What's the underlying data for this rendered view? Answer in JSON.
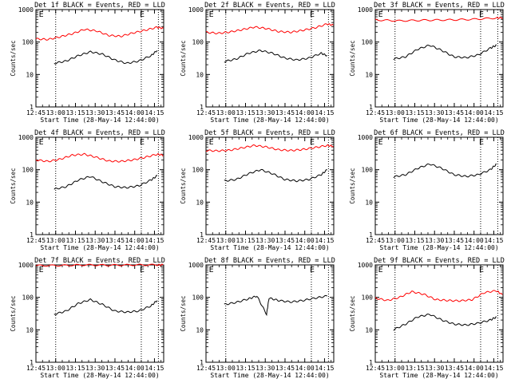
{
  "chart_data": [
    {
      "type": "line",
      "title": "Det 1f BLACK = Events, RED = LLD",
      "xlabel": "Start Time (28-May-14 12:44:00)",
      "ylabel": "Counts/sec",
      "x_ticks": [
        "12:45",
        "13:00",
        "13:15",
        "13:30",
        "13:45",
        "14:00",
        "14:15"
      ],
      "y_ticks": [
        "1",
        "10",
        "100",
        "1000"
      ],
      "ylim": [
        1,
        1000
      ],
      "ylog": true,
      "markers": [
        {
          "time": "13:00",
          "label": ""
        },
        {
          "time": "14:05",
          "label": "E"
        },
        {
          "time": "12:46",
          "label": "E"
        }
      ],
      "series": [
        {
          "color": "#ff0000",
          "points": [
            [
              0,
              125
            ],
            [
              10,
              120
            ],
            [
              20,
              145
            ],
            [
              30,
              180
            ],
            [
              40,
              245
            ],
            [
              50,
              220
            ],
            [
              60,
              160
            ],
            [
              70,
              150
            ],
            [
              80,
              190
            ],
            [
              90,
              230
            ],
            [
              100,
              285
            ],
            [
              105,
              265
            ]
          ]
        },
        {
          "color": "#000000",
          "points": [
            [
              15,
              22
            ],
            [
              25,
              26
            ],
            [
              35,
              38
            ],
            [
              45,
              50
            ],
            [
              55,
              42
            ],
            [
              65,
              28
            ],
            [
              75,
              22
            ],
            [
              85,
              26
            ],
            [
              95,
              38
            ],
            [
              100,
              55
            ]
          ]
        }
      ]
    },
    {
      "type": "line",
      "title": "Det 2f BLACK = Events, RED = LLD",
      "xlabel": "Start Time (28-May-14 12:44:00)",
      "ylabel": "Counts/sec",
      "x_ticks": [
        "12:45",
        "13:00",
        "13:15",
        "13:30",
        "13:45",
        "14:00",
        "14:15"
      ],
      "y_ticks": [
        "1",
        "10",
        "100",
        "1000"
      ],
      "ylim": [
        1,
        1000
      ],
      "ylog": true,
      "markers": [
        {
          "time": "13:00",
          "label": ""
        },
        {
          "time": "14:05",
          "label": "E"
        },
        {
          "time": "12:46",
          "label": "E"
        }
      ],
      "series": [
        {
          "color": "#ff0000",
          "points": [
            [
              0,
              200
            ],
            [
              10,
              185
            ],
            [
              20,
              205
            ],
            [
              30,
              240
            ],
            [
              40,
              290
            ],
            [
              50,
              260
            ],
            [
              60,
              210
            ],
            [
              70,
              200
            ],
            [
              80,
              230
            ],
            [
              90,
              275
            ],
            [
              100,
              360
            ],
            [
              105,
              330
            ]
          ]
        },
        {
          "color": "#000000",
          "points": [
            [
              15,
              25
            ],
            [
              25,
              30
            ],
            [
              35,
              45
            ],
            [
              45,
              55
            ],
            [
              55,
              45
            ],
            [
              65,
              32
            ],
            [
              75,
              28
            ],
            [
              85,
              32
            ],
            [
              95,
              45
            ],
            [
              100,
              38
            ]
          ]
        }
      ]
    },
    {
      "type": "line",
      "title": "Det 3f BLACK = Events, RED = LLD",
      "xlabel": "Start Time (28-May-14 12:44:00)",
      "ylabel": "Counts/sec",
      "x_ticks": [
        "12:45",
        "13:00",
        "13:15",
        "13:30",
        "13:45",
        "14:00",
        "14:15"
      ],
      "y_ticks": [
        "1",
        "10",
        "100",
        "1000"
      ],
      "ylim": [
        1,
        1000
      ],
      "ylog": true,
      "markers": [
        {
          "time": "13:00",
          "label": ""
        },
        {
          "time": "14:05",
          "label": "E"
        },
        {
          "time": "12:46",
          "label": "E"
        }
      ],
      "series": [
        {
          "color": "#ff0000",
          "points": [
            [
              0,
              480
            ],
            [
              20,
              450
            ],
            [
              40,
              470
            ],
            [
              60,
              480
            ],
            [
              80,
              500
            ],
            [
              100,
              550
            ],
            [
              105,
              560
            ]
          ]
        },
        {
          "color": "#000000",
          "points": [
            [
              15,
              30
            ],
            [
              25,
              35
            ],
            [
              35,
              60
            ],
            [
              45,
              80
            ],
            [
              55,
              55
            ],
            [
              65,
              35
            ],
            [
              75,
              33
            ],
            [
              85,
              40
            ],
            [
              95,
              65
            ],
            [
              100,
              80
            ]
          ]
        }
      ]
    },
    {
      "type": "line",
      "title": "Det 4f BLACK = Events, RED = LLD",
      "xlabel": "Start Time (28-May-14 12:44:00)",
      "ylabel": "Counts/sec",
      "x_ticks": [
        "12:45",
        "13:00",
        "13:15",
        "13:30",
        "13:45",
        "14:00",
        "14:15"
      ],
      "y_ticks": [
        "1",
        "10",
        "100",
        "1000"
      ],
      "ylim": [
        1,
        1000
      ],
      "ylog": true,
      "markers": [
        {
          "time": "13:00",
          "label": ""
        },
        {
          "time": "14:05",
          "label": "E"
        },
        {
          "time": "12:46",
          "label": "E"
        }
      ],
      "series": [
        {
          "color": "#ff0000",
          "points": [
            [
              0,
              200
            ],
            [
              10,
              180
            ],
            [
              20,
              210
            ],
            [
              30,
              280
            ],
            [
              40,
              300
            ],
            [
              50,
              240
            ],
            [
              60,
              185
            ],
            [
              70,
              180
            ],
            [
              80,
              200
            ],
            [
              90,
              240
            ],
            [
              100,
              300
            ],
            [
              105,
              280
            ]
          ]
        },
        {
          "color": "#000000",
          "points": [
            [
              15,
              25
            ],
            [
              25,
              30
            ],
            [
              35,
              48
            ],
            [
              45,
              62
            ],
            [
              55,
              42
            ],
            [
              65,
              30
            ],
            [
              75,
              28
            ],
            [
              85,
              32
            ],
            [
              95,
              48
            ],
            [
              100,
              65
            ]
          ]
        }
      ]
    },
    {
      "type": "line",
      "title": "Det 5f BLACK = Events, RED = LLD",
      "xlabel": "Start Time (28-May-14 12:44:00)",
      "ylabel": "Counts/sec",
      "x_ticks": [
        "12:45",
        "13:00",
        "13:15",
        "13:30",
        "13:45",
        "14:00",
        "14:15"
      ],
      "y_ticks": [
        "1",
        "10",
        "100",
        "1000"
      ],
      "ylim": [
        1,
        1000
      ],
      "ylog": true,
      "markers": [
        {
          "time": "13:00",
          "label": ""
        },
        {
          "time": "14:05",
          "label": "E"
        },
        {
          "time": "12:46",
          "label": "E"
        }
      ],
      "series": [
        {
          "color": "#ff0000",
          "points": [
            [
              0,
              390
            ],
            [
              10,
              380
            ],
            [
              20,
              400
            ],
            [
              30,
              470
            ],
            [
              40,
              560
            ],
            [
              50,
              500
            ],
            [
              60,
              410
            ],
            [
              70,
              390
            ],
            [
              80,
              420
            ],
            [
              90,
              480
            ],
            [
              100,
              560
            ],
            [
              105,
              530
            ]
          ]
        },
        {
          "color": "#000000",
          "points": [
            [
              15,
              45
            ],
            [
              25,
              50
            ],
            [
              35,
              75
            ],
            [
              45,
              100
            ],
            [
              55,
              75
            ],
            [
              65,
              50
            ],
            [
              75,
              45
            ],
            [
              85,
              50
            ],
            [
              95,
              70
            ],
            [
              100,
              100
            ]
          ]
        }
      ]
    },
    {
      "type": "line",
      "title": "Det 6f BLACK = Events, RED = LLD",
      "xlabel": "Start Time (28-May-14 12:44:00)",
      "ylabel": "Counts/sec",
      "x_ticks": [
        "12:45",
        "13:00",
        "13:15",
        "13:30",
        "13:45",
        "14:00",
        "14:15"
      ],
      "y_ticks": [
        "1",
        "10",
        "100",
        "1000"
      ],
      "ylim": [
        1,
        1000
      ],
      "ylog": true,
      "markers": [
        {
          "time": "13:00",
          "label": ""
        },
        {
          "time": "14:05",
          "label": "E"
        },
        {
          "time": "12:46",
          "label": "E"
        }
      ],
      "series": [
        {
          "color": "#000000",
          "points": [
            [
              15,
              60
            ],
            [
              25,
              70
            ],
            [
              35,
              110
            ],
            [
              45,
              150
            ],
            [
              55,
              110
            ],
            [
              65,
              70
            ],
            [
              75,
              62
            ],
            [
              85,
              70
            ],
            [
              95,
              100
            ],
            [
              100,
              150
            ]
          ]
        }
      ]
    },
    {
      "type": "line",
      "title": "Det 7f BLACK = Events, RED = LLD",
      "xlabel": "Start Time (28-May-14 12:44:00)",
      "ylabel": "Counts/sec",
      "x_ticks": [
        "12:45",
        "13:00",
        "13:15",
        "13:30",
        "13:45",
        "14:00",
        "14:15"
      ],
      "y_ticks": [
        "1",
        "10",
        "100",
        "1000"
      ],
      "ylim": [
        1,
        1000
      ],
      "ylog": true,
      "markers": [
        {
          "time": "13:00",
          "label": ""
        },
        {
          "time": "14:05",
          "label": "E"
        },
        {
          "time": "12:46",
          "label": "E"
        }
      ],
      "series": [
        {
          "color": "#ff0000",
          "points": [
            [
              0,
              950
            ],
            [
              20,
              960
            ],
            [
              40,
              1000
            ],
            [
              60,
              980
            ],
            [
              80,
              1000
            ],
            [
              100,
              1000
            ],
            [
              105,
              1000
            ]
          ]
        },
        {
          "color": "#000000",
          "points": [
            [
              15,
              30
            ],
            [
              25,
              38
            ],
            [
              35,
              65
            ],
            [
              45,
              85
            ],
            [
              55,
              60
            ],
            [
              65,
              38
            ],
            [
              75,
              35
            ],
            [
              85,
              38
            ],
            [
              95,
              55
            ],
            [
              100,
              80
            ]
          ]
        }
      ]
    },
    {
      "type": "line",
      "title": "Det 8f BLACK = Events, RED = LLD",
      "xlabel": "Start Time (28-May-14 12:44:00)",
      "ylabel": "Counts/sec",
      "x_ticks": [
        "12:45",
        "13:00",
        "13:15",
        "13:30",
        "13:45",
        "14:00",
        "14:15"
      ],
      "y_ticks": [
        "1",
        "10",
        "100",
        "1000"
      ],
      "ylim": [
        1,
        1000
      ],
      "ylog": true,
      "markers": [
        {
          "time": "13:00",
          "label": ""
        },
        {
          "time": "14:05",
          "label": "E"
        },
        {
          "time": "12:46",
          "label": "E"
        }
      ],
      "series": [
        {
          "color": "#000000",
          "points": [
            [
              15,
              60
            ],
            [
              25,
              70
            ],
            [
              35,
              90
            ],
            [
              42,
              110
            ],
            [
              50,
              30
            ],
            [
              52,
              95
            ],
            [
              60,
              80
            ],
            [
              70,
              72
            ],
            [
              80,
              80
            ],
            [
              90,
              95
            ],
            [
              100,
              110
            ]
          ]
        }
      ]
    },
    {
      "type": "line",
      "title": "Det 9f BLACK = Events, RED = LLD",
      "xlabel": "Start Time (28-May-14 12:44:00)",
      "ylabel": "Counts/sec",
      "x_ticks": [
        "12:45",
        "13:00",
        "13:15",
        "13:30",
        "13:45",
        "14:00",
        "14:15"
      ],
      "y_ticks": [
        "1",
        "10",
        "100",
        "1000"
      ],
      "ylim": [
        1,
        1000
      ],
      "ylog": true,
      "markers": [
        {
          "time": "13:00",
          "label": ""
        },
        {
          "time": "14:05",
          "label": "E"
        },
        {
          "time": "12:46",
          "label": "E"
        }
      ],
      "series": [
        {
          "color": "#ff0000",
          "points": [
            [
              0,
              95
            ],
            [
              10,
              80
            ],
            [
              20,
              100
            ],
            [
              30,
              150
            ],
            [
              40,
              125
            ],
            [
              50,
              85
            ],
            [
              60,
              80
            ],
            [
              70,
              78
            ],
            [
              80,
              85
            ],
            [
              90,
              140
            ],
            [
              100,
              160
            ],
            [
              105,
              120
            ]
          ]
        },
        {
          "color": "#000000",
          "points": [
            [
              15,
              10
            ],
            [
              25,
              15
            ],
            [
              35,
              25
            ],
            [
              45,
              30
            ],
            [
              55,
              20
            ],
            [
              65,
              15
            ],
            [
              75,
              14
            ],
            [
              85,
              16
            ],
            [
              95,
              20
            ],
            [
              100,
              25
            ]
          ]
        }
      ]
    }
  ]
}
